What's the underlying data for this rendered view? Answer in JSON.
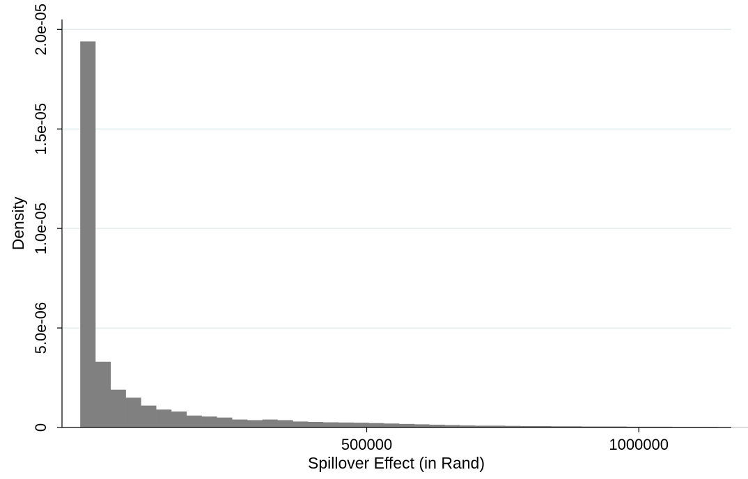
{
  "chart_data": {
    "type": "bar",
    "subtype": "histogram",
    "xlabel": "Spillover Effect (in Rand)",
    "ylabel": "Density",
    "xlim": [
      -60000,
      1170000
    ],
    "ylim": [
      0,
      2.05e-05
    ],
    "x_ticks": [
      {
        "value": 500000,
        "label": "500000"
      },
      {
        "value": 1000000,
        "label": "1000000"
      }
    ],
    "y_ticks": [
      {
        "value": 0,
        "label": "0"
      },
      {
        "value": 5e-06,
        "label": "5.0e-06"
      },
      {
        "value": 1e-05,
        "label": "1.0e-05"
      },
      {
        "value": 1.5e-05,
        "label": "1.5e-05"
      },
      {
        "value": 2e-05,
        "label": "2.0e-05"
      }
    ],
    "grid": true,
    "bar_color": "#808080",
    "bin_width": 27900,
    "bin_start": -26500,
    "values": [
      1.94e-05,
      3.3e-06,
      1.9e-06,
      1.5e-06,
      1.1e-06,
      9e-07,
      8e-07,
      6e-07,
      5.5e-07,
      5e-07,
      4e-07,
      3.7e-07,
      4e-07,
      3.7e-07,
      3e-07,
      2.8e-07,
      2.6e-07,
      2.5e-07,
      2.4e-07,
      2.2e-07,
      2e-07,
      1.8e-07,
      1.6e-07,
      1.4e-07,
      1.2e-07,
      1e-07,
      9e-08,
      9e-08,
      8e-08,
      7e-08,
      7e-08,
      6e-08,
      6e-08,
      5e-08,
      5e-08,
      5e-08,
      4e-08,
      4e-08,
      4e-08,
      3e-08,
      3e-08,
      3e-08,
      2e-08,
      2e-08
    ]
  }
}
